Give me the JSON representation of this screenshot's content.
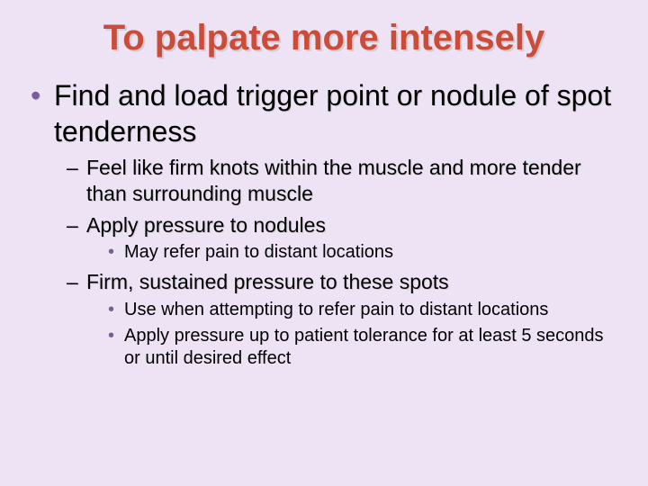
{
  "colors": {
    "background": "#ede3f4",
    "title": "#cb4c39",
    "bullet_accent": "#7a5c9a",
    "text": "#000000"
  },
  "typography": {
    "title_fontsize": 40,
    "l1_fontsize": 32,
    "l2_fontsize": 23,
    "l3_fontsize": 20,
    "font_family": "Arial"
  },
  "title": "To palpate more intensely",
  "bullets": [
    {
      "text": "Find and load trigger point or nodule of spot tenderness",
      "children": [
        {
          "text": "Feel like firm knots within the muscle and more tender than surrounding muscle"
        },
        {
          "text": "Apply pressure to nodules",
          "children": [
            {
              "text": "May refer pain to distant locations"
            }
          ]
        },
        {
          "text": "Firm, sustained pressure to these spots",
          "children": [
            {
              "text": "Use when attempting to refer pain to distant locations"
            },
            {
              "text": "Apply pressure up to patient tolerance for at least 5 seconds or until desired effect"
            }
          ]
        }
      ]
    }
  ]
}
